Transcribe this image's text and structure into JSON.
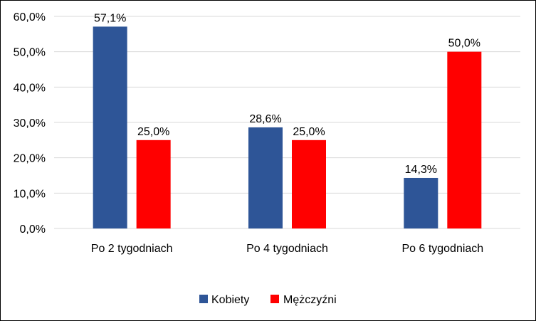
{
  "chart_data": {
    "type": "bar",
    "categories": [
      "Po 2 tygodniach",
      "Po 4 tygodniach",
      "Po 6 tygodniach"
    ],
    "series": [
      {
        "name": "Kobiety",
        "values": [
          57.1,
          28.6,
          14.3
        ],
        "labels": [
          "57,1%",
          "28,6%",
          "14,3%"
        ],
        "color": "#2E5597"
      },
      {
        "name": "Mężczyźni",
        "values": [
          25.0,
          25.0,
          50.0
        ],
        "labels": [
          "25,0%",
          "25,0%",
          "50,0%"
        ],
        "color": "#FF0000"
      }
    ],
    "ylim": [
      0,
      60
    ],
    "yticks": [
      0,
      10,
      20,
      30,
      40,
      50,
      60
    ],
    "ytick_labels": [
      "0,0%",
      "10,0%",
      "20,0%",
      "30,0%",
      "40,0%",
      "50,0%",
      "60,0%"
    ],
    "gridlines": true,
    "legend_position": "bottom",
    "title": "",
    "xlabel": "",
    "ylabel": ""
  }
}
